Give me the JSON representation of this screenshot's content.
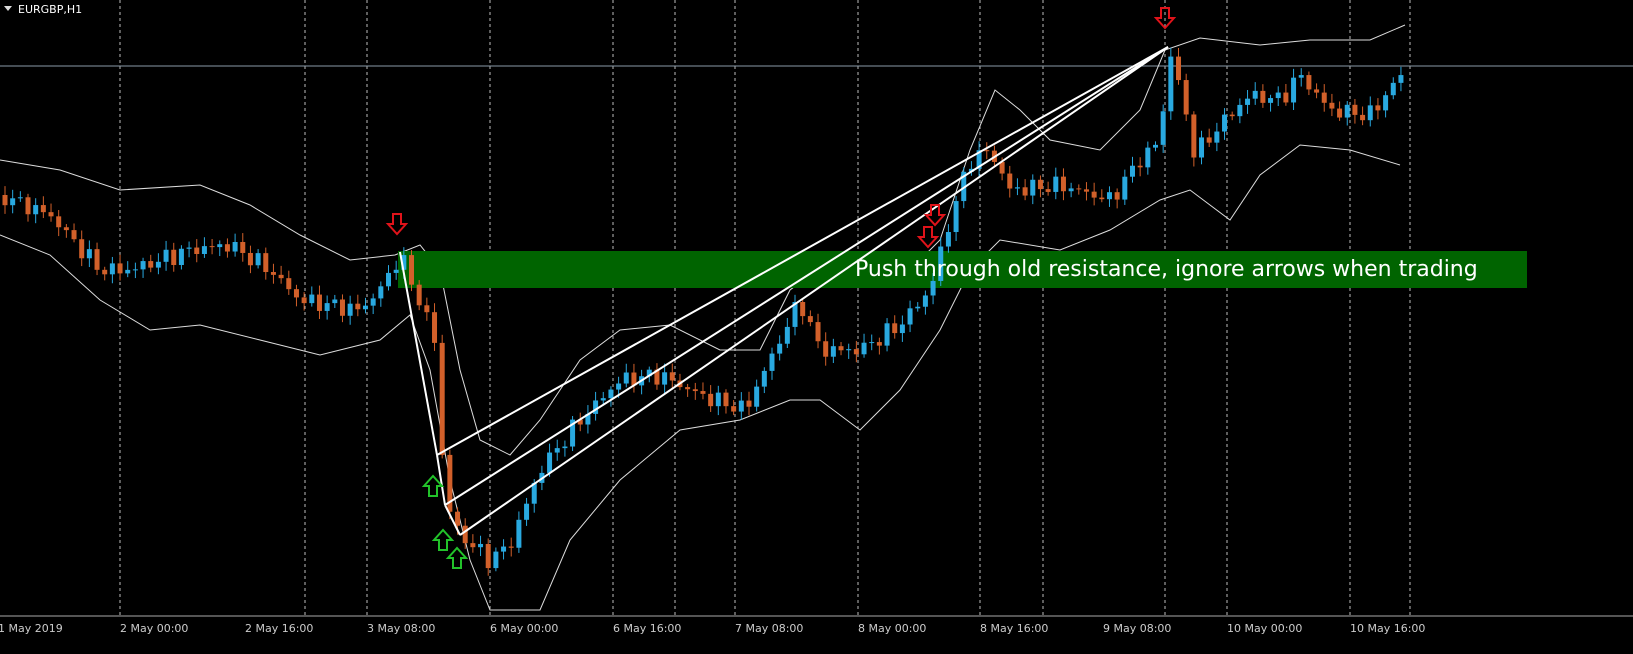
{
  "window": {
    "symbol": "EURGBP,H1"
  },
  "annotation": "Push through old resistance, ignore arrows when trading",
  "time_axis": {
    "labels": [
      "1 May 2019",
      "2 May 00:00",
      "2 May 16:00",
      "3 May 08:00",
      "6 May 00:00",
      "6 May 16:00",
      "7 May 08:00",
      "8 May 00:00",
      "8 May 16:00",
      "9 May 08:00",
      "10 May 00:00",
      "10 May 16:00"
    ]
  }
}
